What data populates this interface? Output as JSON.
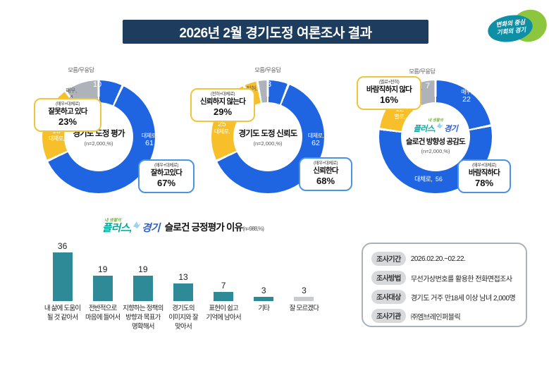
{
  "header": {
    "title": "2026년 2월 경기도정 여론조사 결과"
  },
  "gg_logo": {
    "line1": "변화의 중심",
    "line2": "기회의 경기"
  },
  "plus_logo": {
    "top": "내 생활의",
    "part1": "플러스,",
    "part2": "경기"
  },
  "colors": {
    "blue": "#1f64e0",
    "yellow": "#f7bf2a",
    "gray": "#aeb2b9",
    "teal": "#2e8a96",
    "bar_gray": "#c9cbcd",
    "navy": "#1d3c5e"
  },
  "chart_data": [
    {
      "type": "donut",
      "title": "경기도 도정 평가",
      "n_label": "(n=2,000,%)",
      "slices": [
        {
          "name": "매우",
          "value": 7,
          "color": "blue"
        },
        {
          "name": "대체로",
          "value": 61,
          "color": "blue"
        },
        {
          "name": "대체로",
          "value": 18,
          "color": "yellow"
        },
        {
          "name": "매우",
          "value": 4,
          "color": "yellow"
        },
        {
          "name": "모름/무응답",
          "value": 10,
          "color": "gray"
        }
      ],
      "labels": {
        "dk": "모름/무응답",
        "dk_value": "10",
        "pos1_name": "매우,",
        "pos1_value": "7",
        "pos2_name": "대체로,",
        "pos2_value": "61",
        "neg1_value": "18",
        "neg1_name": "대체로,",
        "neg2_name": "매우,",
        "neg2_value": "4"
      },
      "negative_callout": {
        "head": "(매우+대체로)",
        "text": "잘못하고 있다",
        "pct": "23%"
      },
      "positive_callout": {
        "head": "(매우+대체로)",
        "text": "잘하고있다",
        "pct": "67%"
      }
    },
    {
      "type": "donut",
      "title": "경기도 도정 신뢰도",
      "n_label": "(n=2,000,%)",
      "slices": [
        {
          "name": "매우",
          "value": 6,
          "color": "blue"
        },
        {
          "name": "대체로",
          "value": 62,
          "color": "blue"
        },
        {
          "name": "대체로",
          "value": 25,
          "color": "yellow"
        },
        {
          "name": "전혀",
          "value": 4,
          "color": "yellow"
        },
        {
          "name": "모름/무응답",
          "value": 3,
          "color": "gray"
        }
      ],
      "labels": {
        "dk": "모름/무응답",
        "dk_value": "3",
        "pos1_name": "매우,",
        "pos1_value": "6",
        "pos2_name": "대체로,",
        "pos2_value": "62",
        "neg1_value": "25",
        "neg1_name": "대체로,",
        "neg2_name": "전혀,",
        "neg2_value": "4"
      },
      "negative_callout": {
        "head": "(전혀+대체로)",
        "text": "신뢰하지 않는다",
        "pct": "29%"
      },
      "positive_callout": {
        "head": "(매우+대체로)",
        "text": "신뢰한다",
        "pct": "68%"
      }
    },
    {
      "type": "donut",
      "title": "슬로건 방향성 공감도",
      "n_label": "(n=2,000,%)",
      "slices": [
        {
          "name": "매우",
          "value": 22,
          "color": "blue"
        },
        {
          "name": "대체로",
          "value": 56,
          "color": "blue"
        },
        {
          "name": "별로",
          "value": 12,
          "color": "yellow"
        },
        {
          "name": "전혀",
          "value": 4,
          "color": "yellow"
        },
        {
          "name": "모름/무응답",
          "value": 7,
          "color": "gray"
        }
      ],
      "labels": {
        "dk": "모름/무응답",
        "dk_value": "7",
        "pos1_name": "매우,",
        "pos1_value": "22",
        "pos2_name": "대체로,",
        "pos2_value": "56",
        "neg1_value": "12",
        "neg1_name": "별로,",
        "neg2_name": "전혀,",
        "neg2_value": "4"
      },
      "negative_callout": {
        "head": "(별로+전혀)",
        "text": "바람직하지 않다",
        "pct": "16%"
      },
      "positive_callout": {
        "head": "(매우+대체로)",
        "text": "바람직하다",
        "pct": "78%"
      }
    },
    {
      "type": "bar",
      "title": "슬로건 긍정평가 이유",
      "n_label": "(n=988,%)",
      "categories": [
        "내 삶에 도움이\n될 것 같아서",
        "전반적으로\n마음에 들어서",
        "지향하는 정책의\n방향과 목표가\n명확해서",
        "경기도의\n이미지와 잘\n맞아서",
        "표현이 쉽고\n기억에 남아서",
        "기타",
        "잘 모르겠다"
      ],
      "values": [
        36,
        19,
        19,
        13,
        7,
        3,
        3
      ],
      "bar_colors": [
        "teal",
        "teal",
        "teal",
        "teal",
        "teal",
        "teal",
        "bar_gray"
      ],
      "ylim": [
        0,
        40
      ]
    }
  ],
  "survey_info": {
    "rows": [
      {
        "label": "조사기간",
        "value": "2026.02.20.~02.22."
      },
      {
        "label": "조사방법",
        "value": "무선가상번호를 활용한 전화면접조사"
      },
      {
        "label": "조사대상",
        "value": "경기도 거주 만18세 이상 남녀 2,000명"
      },
      {
        "label": "조사기관",
        "value": "㈜엠브레인퍼블릭"
      }
    ]
  }
}
